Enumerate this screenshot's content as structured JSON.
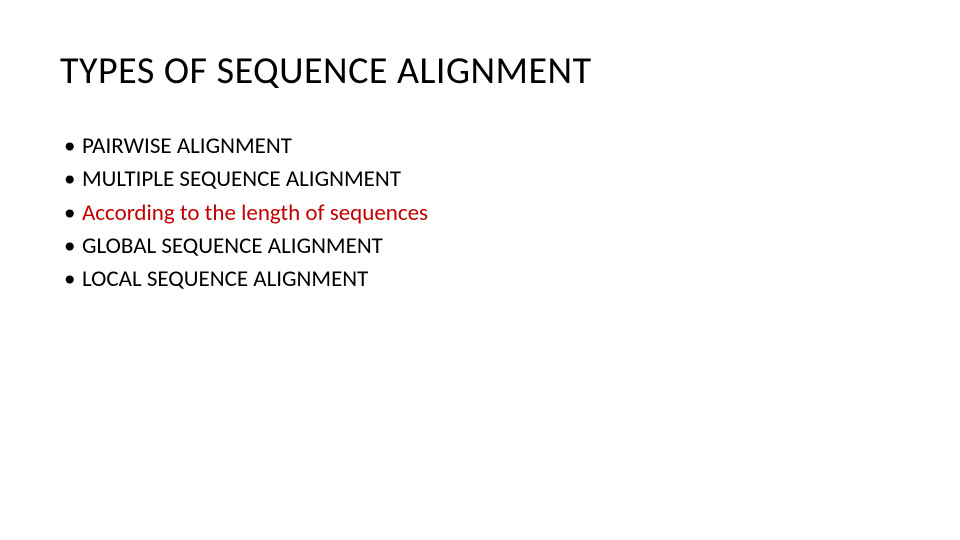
{
  "slide": {
    "title": "TYPES OF SEQUENCE ALIGNMENT",
    "bullets": [
      {
        "text": "PAIRWISE ALIGNMENT",
        "accent": false
      },
      {
        "text": "MULTIPLE SEQUENCE ALIGNMENT",
        "accent": false
      },
      {
        "text": "According to the length of sequences",
        "accent": true
      },
      {
        "text": "GLOBAL SEQUENCE ALIGNMENT",
        "accent": false
      },
      {
        "text": "LOCAL SEQUENCE ALIGNMENT",
        "accent": false
      }
    ],
    "styles": {
      "background_color": "#ffffff",
      "title_color": "#000000",
      "title_fontsize": 38,
      "bullet_color_default": "#000000",
      "bullet_color_accent": "#c00000",
      "bullet_fontsize": 23,
      "font_family": "Calibri"
    }
  }
}
